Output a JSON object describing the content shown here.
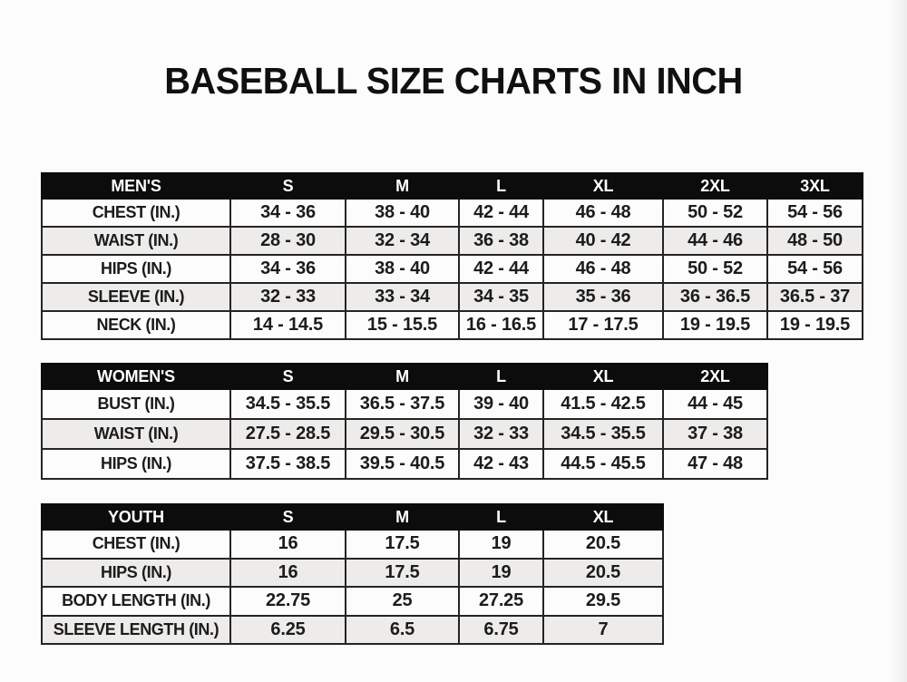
{
  "page": {
    "title": "BASEBALL SIZE CHARTS IN INCH"
  },
  "colors": {
    "header_bg": "#0c0c0c",
    "header_text": "#ffffff",
    "row_stripe": "#edecea",
    "row_plain": "#fcfcfc",
    "border": "#242424",
    "text": "#1c1c1c"
  },
  "tables": [
    {
      "id": "mens",
      "header": [
        "MEN'S",
        "S",
        "M",
        "L",
        "XL",
        "2XL",
        "3XL"
      ],
      "rows": [
        {
          "label": "CHEST (IN.)",
          "values": [
            "34 - 36",
            "38 - 40",
            "42 - 44",
            "46 - 48",
            "50 - 52",
            "54 - 56"
          ]
        },
        {
          "label": "WAIST (IN.)",
          "values": [
            "28 - 30",
            "32 - 34",
            "36 - 38",
            "40 - 42",
            "44 - 46",
            "48 - 50"
          ]
        },
        {
          "label": "HIPS (IN.)",
          "values": [
            "34 - 36",
            "38 - 40",
            "42 - 44",
            "46 - 48",
            "50 - 52",
            "54 - 56"
          ]
        },
        {
          "label": "SLEEVE (IN.)",
          "values": [
            "32 - 33",
            "33 - 34",
            "34 - 35",
            "35 - 36",
            "36 - 36.5",
            "36.5 - 37"
          ]
        },
        {
          "label": "NECK (IN.)",
          "values": [
            "14 - 14.5",
            "15 - 15.5",
            "16 - 16.5",
            "17 - 17.5",
            "19 - 19.5",
            "19 - 19.5"
          ]
        }
      ]
    },
    {
      "id": "womens",
      "header": [
        "WOMEN'S",
        "S",
        "M",
        "L",
        "XL",
        "2XL"
      ],
      "rows": [
        {
          "label": "BUST (IN.)",
          "values": [
            "34.5 - 35.5",
            "36.5 - 37.5",
            "39 - 40",
            "41.5 - 42.5",
            "44 - 45"
          ]
        },
        {
          "label": "WAIST (IN.)",
          "values": [
            "27.5 - 28.5",
            "29.5 - 30.5",
            "32 - 33",
            "34.5 - 35.5",
            "37 - 38"
          ]
        },
        {
          "label": "HIPS (IN.)",
          "values": [
            "37.5 - 38.5",
            "39.5 - 40.5",
            "42 - 43",
            "44.5 - 45.5",
            "47 - 48"
          ]
        }
      ]
    },
    {
      "id": "youth",
      "header": [
        "YOUTH",
        "S",
        "M",
        "L",
        "XL"
      ],
      "rows": [
        {
          "label": "CHEST (IN.)",
          "values": [
            "16",
            "17.5",
            "19",
            "20.5"
          ]
        },
        {
          "label": "HIPS (IN.)",
          "values": [
            "16",
            "17.5",
            "19",
            "20.5"
          ]
        },
        {
          "label": "BODY LENGTH (IN.)",
          "values": [
            "22.75",
            "25",
            "27.25",
            "29.5"
          ]
        },
        {
          "label": "SLEEVE LENGTH (IN.)",
          "values": [
            "6.25",
            "6.5",
            "6.75",
            "7"
          ]
        }
      ]
    }
  ]
}
